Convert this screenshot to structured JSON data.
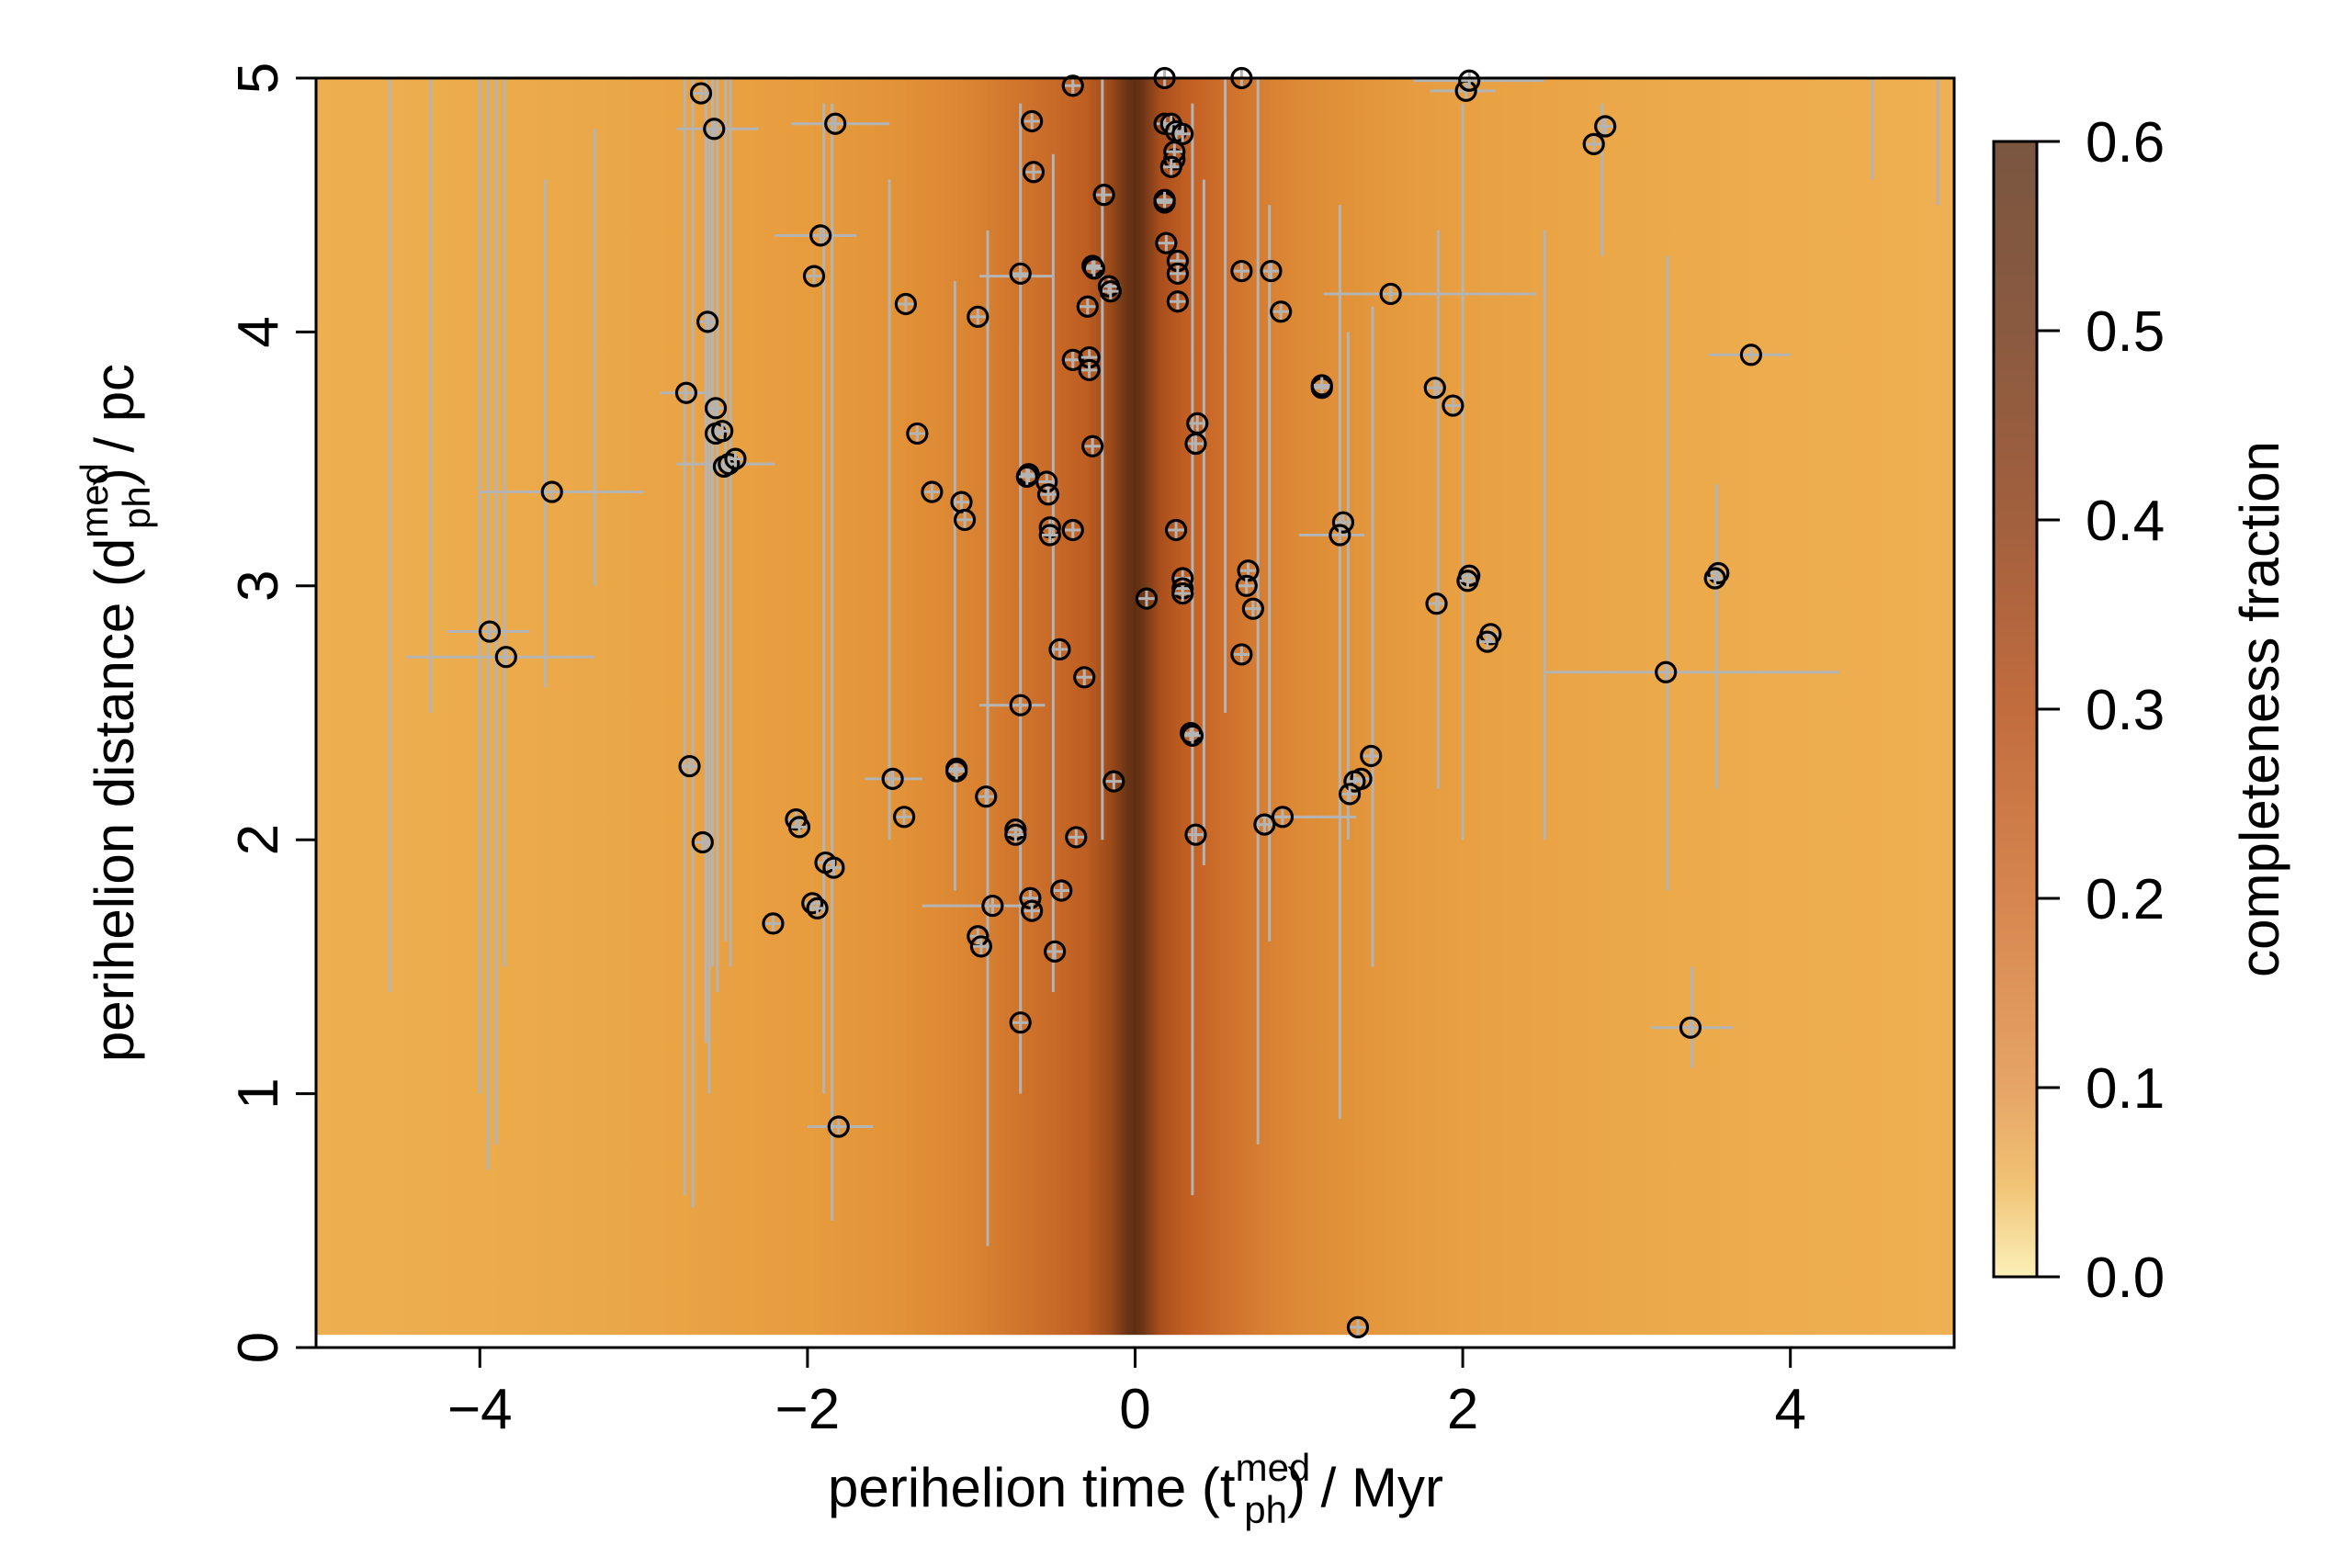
{
  "chart_data": {
    "type": "scatter",
    "xlabel": {
      "main": "perihelion time (t",
      "sup": "med",
      "sub": "ph",
      "tail": ") / Myr"
    },
    "ylabel": {
      "main": "perihelion distance (d",
      "sup": "med",
      "sub": "ph",
      "tail": ") / pc"
    },
    "xlim": [
      -5,
      5
    ],
    "ylim": [
      0,
      5
    ],
    "x_ticks": [
      -4,
      -2,
      0,
      2,
      4
    ],
    "x_tick_labels": [
      "−4",
      "−2",
      "0",
      "2",
      "4"
    ],
    "y_ticks": [
      0,
      1,
      2,
      3,
      4,
      5
    ],
    "y_tick_labels": [
      "0",
      "1",
      "2",
      "3",
      "4",
      "5"
    ],
    "grid": false,
    "colorbar": {
      "label": "completeness fraction",
      "range": [
        0,
        0.6
      ],
      "ticks": [
        0,
        0.1,
        0.2,
        0.3,
        0.4,
        0.5,
        0.6
      ],
      "tick_labels": [
        "0.0",
        "0.1",
        "0.2",
        "0.3",
        "0.4",
        "0.5",
        "0.6"
      ],
      "stops": [
        [
          0,
          "#FBF0B8"
        ],
        [
          0.05,
          "#F0C274"
        ],
        [
          0.1,
          "#E6A466"
        ],
        [
          0.2,
          "#D6864E"
        ],
        [
          0.3,
          "#C26C3E"
        ],
        [
          0.4,
          "#A2603E"
        ],
        [
          0.5,
          "#8A5A40"
        ],
        [
          0.6,
          "#7A5640"
        ]
      ]
    },
    "completeness_profile": {
      "t": [
        -5,
        -4,
        -3,
        -2,
        -1.5,
        -1,
        -0.7,
        -0.5,
        -0.3,
        -0.15,
        -0.05,
        0,
        0.05,
        0.15,
        0.3,
        0.5,
        0.7,
        1,
        1.5,
        2,
        3,
        4,
        5
      ],
      "colors": [
        "#EDAF50",
        "#ECAC4C",
        "#EAA646",
        "#E79C3E",
        "#E39438",
        "#DA8432",
        "#CF742C",
        "#C86A28",
        "#BE5E22",
        "#9C4A1A",
        "#6A3414",
        "#5E2E12",
        "#6E3616",
        "#A84E1C",
        "#C05E22",
        "#CC6C2A",
        "#D47A30",
        "#DD8A36",
        "#E4983C",
        "#E8A042",
        "#EBA848",
        "#EDAD4E",
        "#EEB052"
      ],
      "d_range": [
        0.05,
        5
      ]
    },
    "points": [
      [
        -2.65,
        4.94
      ],
      [
        -2.57,
        4.8
      ],
      [
        -1.83,
        4.82
      ],
      [
        -0.38,
        4.97
      ],
      [
        -0.63,
        4.83
      ],
      [
        0.18,
        5.0
      ],
      [
        0.65,
        5.0
      ],
      [
        2.02,
        4.95
      ],
      [
        2.04,
        4.99
      ],
      [
        2.87,
        4.81
      ],
      [
        2.8,
        4.74
      ],
      [
        -0.62,
        4.63
      ],
      [
        -0.19,
        4.54
      ],
      [
        0.18,
        4.51
      ],
      [
        0.18,
        4.52
      ],
      [
        0.18,
        4.82
      ],
      [
        0.22,
        4.82
      ],
      [
        0.25,
        4.79
      ],
      [
        0.29,
        4.78
      ],
      [
        0.24,
        4.68
      ],
      [
        0.24,
        4.71
      ],
      [
        0.22,
        4.65
      ],
      [
        0.19,
        4.35
      ],
      [
        -1.92,
        4.38
      ],
      [
        -1.96,
        4.22
      ],
      [
        -0.7,
        4.23
      ],
      [
        -0.26,
        4.26
      ],
      [
        -0.25,
        4.25
      ],
      [
        -0.16,
        4.18
      ],
      [
        -0.15,
        4.16
      ],
      [
        0.26,
        4.28
      ],
      [
        0.26,
        4.23
      ],
      [
        0.26,
        4.12
      ],
      [
        -0.29,
        4.1
      ],
      [
        -1.4,
        4.11
      ],
      [
        -0.96,
        4.06
      ],
      [
        0.65,
        4.24
      ],
      [
        0.83,
        4.24
      ],
      [
        0.89,
        4.08
      ],
      [
        1.56,
        4.15
      ],
      [
        -2.61,
        4.04
      ],
      [
        -0.38,
        3.89
      ],
      [
        -0.28,
        3.9
      ],
      [
        -0.28,
        3.85
      ],
      [
        1.14,
        3.78
      ],
      [
        1.14,
        3.79
      ],
      [
        1.83,
        3.78
      ],
      [
        1.94,
        3.71
      ],
      [
        3.76,
        3.91
      ],
      [
        -2.74,
        3.76
      ],
      [
        -2.56,
        3.7
      ],
      [
        -2.56,
        3.6
      ],
      [
        -2.52,
        3.61
      ],
      [
        -2.51,
        3.47
      ],
      [
        -2.48,
        3.48
      ],
      [
        -2.44,
        3.5
      ],
      [
        -1.33,
        3.6
      ],
      [
        -0.26,
        3.55
      ],
      [
        0.38,
        3.64
      ],
      [
        0.37,
        3.56
      ],
      [
        -3.56,
        3.37
      ],
      [
        -1.24,
        3.37
      ],
      [
        -1.06,
        3.33
      ],
      [
        -1.04,
        3.26
      ],
      [
        -0.65,
        3.44
      ],
      [
        -0.66,
        3.43
      ],
      [
        -0.54,
        3.41
      ],
      [
        -0.53,
        3.36
      ],
      [
        -0.52,
        3.23
      ],
      [
        -0.52,
        3.2
      ],
      [
        -0.38,
        3.22
      ],
      [
        0.25,
        3.22
      ],
      [
        1.27,
        3.25
      ],
      [
        1.25,
        3.2
      ],
      [
        0.29,
        3.03
      ],
      [
        0.29,
        2.99
      ],
      [
        0.29,
        2.97
      ],
      [
        0.69,
        3.06
      ],
      [
        0.68,
        3.0
      ],
      [
        0.72,
        2.91
      ],
      [
        0.07,
        2.95
      ],
      [
        1.84,
        2.93
      ],
      [
        2.04,
        3.04
      ],
      [
        2.03,
        3.02
      ],
      [
        3.56,
        3.05
      ],
      [
        3.54,
        3.03
      ],
      [
        2.17,
        2.81
      ],
      [
        2.15,
        2.78
      ],
      [
        -3.94,
        2.82
      ],
      [
        -3.84,
        2.72
      ],
      [
        3.24,
        2.66
      ],
      [
        -0.46,
        2.75
      ],
      [
        -0.31,
        2.64
      ],
      [
        0.65,
        2.73
      ],
      [
        -0.7,
        2.53
      ],
      [
        0.34,
        2.42
      ],
      [
        0.35,
        2.41
      ],
      [
        -2.72,
        2.29
      ],
      [
        -1.48,
        2.24
      ],
      [
        -1.09,
        2.28
      ],
      [
        -1.09,
        2.27
      ],
      [
        -0.13,
        2.23
      ],
      [
        -0.91,
        2.17
      ],
      [
        1.44,
        2.33
      ],
      [
        1.38,
        2.24
      ],
      [
        1.34,
        2.23
      ],
      [
        1.31,
        2.18
      ],
      [
        -2.07,
        2.08
      ],
      [
        -2.05,
        2.05
      ],
      [
        -1.41,
        2.09
      ],
      [
        -0.73,
        2.04
      ],
      [
        -0.73,
        2.02
      ],
      [
        -0.36,
        2.01
      ],
      [
        0.37,
        2.02
      ],
      [
        0.79,
        2.06
      ],
      [
        0.9,
        2.09
      ],
      [
        -2.64,
        1.99
      ],
      [
        -1.89,
        1.91
      ],
      [
        -1.84,
        1.89
      ],
      [
        -1.97,
        1.75
      ],
      [
        -1.94,
        1.73
      ],
      [
        -0.64,
        1.77
      ],
      [
        -0.63,
        1.72
      ],
      [
        -0.87,
        1.74
      ],
      [
        -0.45,
        1.8
      ],
      [
        -2.21,
        1.67
      ],
      [
        -0.96,
        1.62
      ],
      [
        -0.94,
        1.58
      ],
      [
        -0.49,
        1.56
      ],
      [
        -0.7,
        1.28
      ],
      [
        3.39,
        1.26
      ],
      [
        -1.81,
        0.87
      ],
      [
        1.36,
        0.08
      ]
    ],
    "vertical_error_bars": [
      [
        -4.55,
        1.4,
        5
      ],
      [
        -4.3,
        2.5,
        5
      ],
      [
        -4.0,
        1.0,
        5
      ],
      [
        -3.95,
        0.7,
        5
      ],
      [
        -3.9,
        0.8,
        5
      ],
      [
        -3.85,
        1.5,
        5
      ],
      [
        -3.6,
        2.6,
        4.6
      ],
      [
        -3.3,
        3.0,
        4.8
      ],
      [
        -2.75,
        0.6,
        5
      ],
      [
        -2.7,
        0.55,
        5
      ],
      [
        -2.62,
        1.2,
        5
      ],
      [
        -2.58,
        1.5,
        5
      ],
      [
        -2.55,
        1.4,
        5
      ],
      [
        -2.5,
        1.6,
        5
      ],
      [
        -2.47,
        1.5,
        5
      ],
      [
        -2.6,
        1.0,
        4.8
      ],
      [
        -1.9,
        1.0,
        4.9
      ],
      [
        -1.85,
        0.5,
        4.9
      ],
      [
        -1.5,
        2.0,
        4.6
      ],
      [
        -1.1,
        1.8,
        4.2
      ],
      [
        -0.9,
        0.4,
        4.4
      ],
      [
        -0.7,
        1.0,
        4.9
      ],
      [
        -0.5,
        1.4,
        4.7
      ],
      [
        -0.2,
        2.0,
        5
      ],
      [
        0.35,
        0.6,
        4.9
      ],
      [
        0.42,
        1.9,
        4.6
      ],
      [
        0.55,
        2.5,
        5
      ],
      [
        0.75,
        0.8,
        5
      ],
      [
        0.82,
        1.6,
        4.5
      ],
      [
        1.25,
        0.9,
        4.5
      ],
      [
        1.3,
        2.0,
        4.0
      ],
      [
        1.45,
        1.5,
        4.1
      ],
      [
        1.85,
        2.2,
        4.4
      ],
      [
        2.0,
        2.0,
        4.9
      ],
      [
        2.5,
        2.0,
        4.4
      ],
      [
        3.25,
        1.8,
        4.3
      ],
      [
        3.55,
        2.2,
        3.4
      ],
      [
        3.4,
        1.1,
        1.5
      ],
      [
        2.85,
        4.3,
        4.9
      ],
      [
        4.5,
        4.6,
        5
      ],
      [
        4.9,
        4.5,
        5
      ]
    ],
    "horizontal_error_bars": [
      [
        2.72,
        -4.45,
        -3.3
      ],
      [
        2.82,
        -4.2,
        -3.7
      ],
      [
        3.37,
        -4.0,
        -3.0
      ],
      [
        2.66,
        2.5,
        4.3
      ],
      [
        4.15,
        1.15,
        2.45
      ],
      [
        1.26,
        3.15,
        3.65
      ],
      [
        3.76,
        -2.9,
        -2.6
      ],
      [
        3.48,
        -2.8,
        -2.2
      ],
      [
        4.38,
        -2.2,
        -1.7
      ],
      [
        4.82,
        -2.1,
        -1.5
      ],
      [
        4.8,
        -2.8,
        -2.3
      ],
      [
        0.87,
        -2.0,
        -1.6
      ],
      [
        3.91,
        3.5,
        4.0
      ],
      [
        4.22,
        -0.95,
        -0.5
      ],
      [
        1.74,
        -1.3,
        -0.7
      ],
      [
        2.53,
        -0.95,
        -0.55
      ],
      [
        2.09,
        0.75,
        1.35
      ],
      [
        3.2,
        1.0,
        1.4
      ],
      [
        2.24,
        -1.65,
        -1.3
      ],
      [
        4.95,
        1.8,
        2.2
      ],
      [
        4.99,
        1.7,
        2.5
      ]
    ]
  }
}
